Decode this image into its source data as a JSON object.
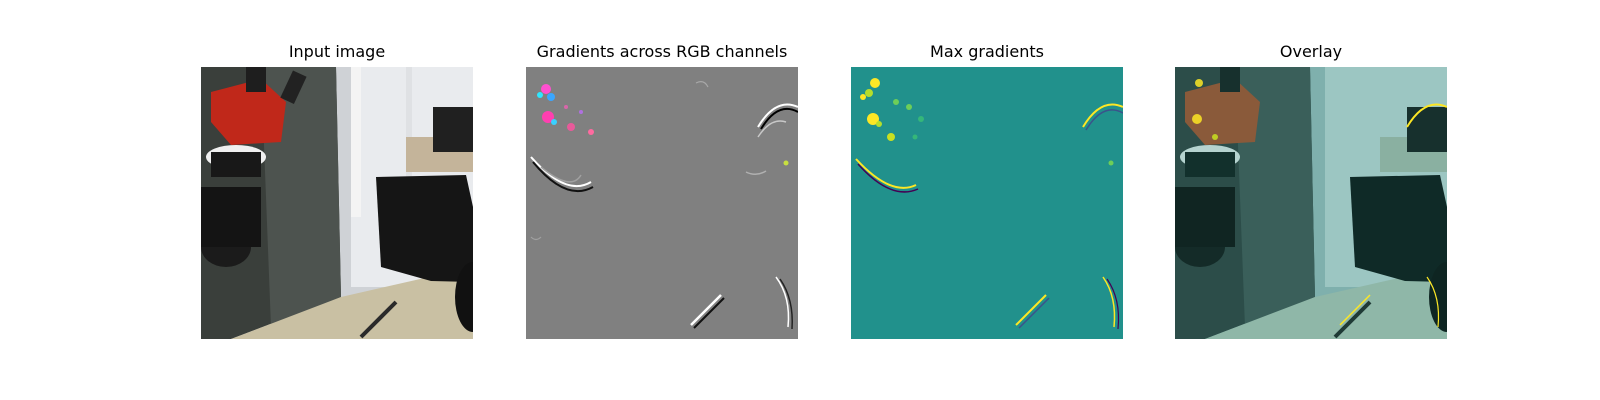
{
  "figure": {
    "panels": [
      {
        "title": "Input image"
      },
      {
        "title": "Gradients across RGB channels"
      },
      {
        "title": "Max gradients"
      },
      {
        "title": "Overlay"
      }
    ]
  },
  "colors": {
    "viridis_background": "#21918c",
    "viridis_highlight": "#fde725",
    "gradient_gray": "#808080",
    "robot_red": "#c0281a"
  }
}
